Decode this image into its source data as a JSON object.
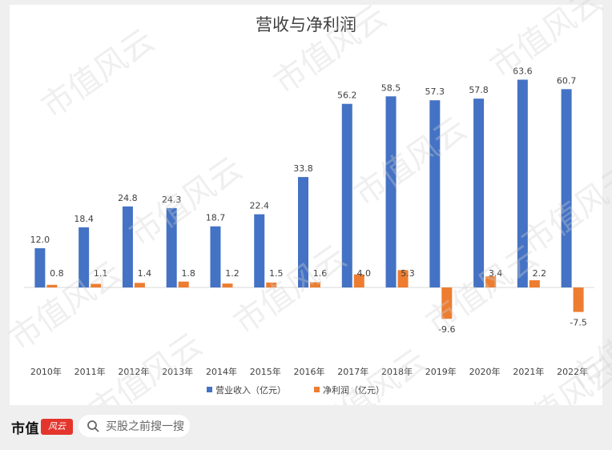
{
  "colors": {
    "revenue": "#4472c4",
    "profit": "#ed7d31",
    "text": "#404040",
    "axis": "#d9d9d9",
    "brand_red": "#e4352d"
  },
  "watermark": {
    "text": "市值风云"
  },
  "chart_data": {
    "type": "bar",
    "title": "营收与净利润",
    "categories": [
      "2010年",
      "2011年",
      "2012年",
      "2013年",
      "2014年",
      "2015年",
      "2016年",
      "2017年",
      "2018年",
      "2019年",
      "2020年",
      "2021年",
      "2022年"
    ],
    "series": [
      {
        "name": "营业收入（亿元）",
        "values": [
          12.0,
          18.4,
          24.8,
          24.3,
          18.7,
          22.4,
          33.8,
          56.2,
          58.5,
          57.3,
          57.8,
          63.6,
          60.7
        ]
      },
      {
        "name": "净利润（亿元）",
        "values": [
          0.8,
          1.1,
          1.4,
          1.8,
          1.2,
          1.5,
          1.6,
          4.0,
          5.3,
          -9.6,
          3.4,
          2.2,
          -7.5
        ]
      }
    ],
    "data_labels": {
      "revenue": [
        "12.0",
        "18.4",
        "24.8",
        "24.3",
        "18.7",
        "22.4",
        "33.8",
        "56.2",
        "58.5",
        "57.3",
        "57.8",
        "63.6",
        "60.7"
      ],
      "profit": [
        "0.8",
        "1.1",
        "1.4",
        "1.8",
        "1.2",
        "1.5",
        "1.6",
        "4.0",
        "5.3",
        "-9.6",
        "3.4",
        "2.2",
        "-7.5"
      ]
    },
    "xlabel": "",
    "ylabel": "",
    "ylim": [
      -25,
      70
    ],
    "grid": false,
    "legend_position": "bottom"
  },
  "footer": {
    "brand_name": "市值",
    "brand_logo_text": "风云",
    "search_placeholder": "买股之前搜一搜",
    "search_icon": "search-icon"
  }
}
